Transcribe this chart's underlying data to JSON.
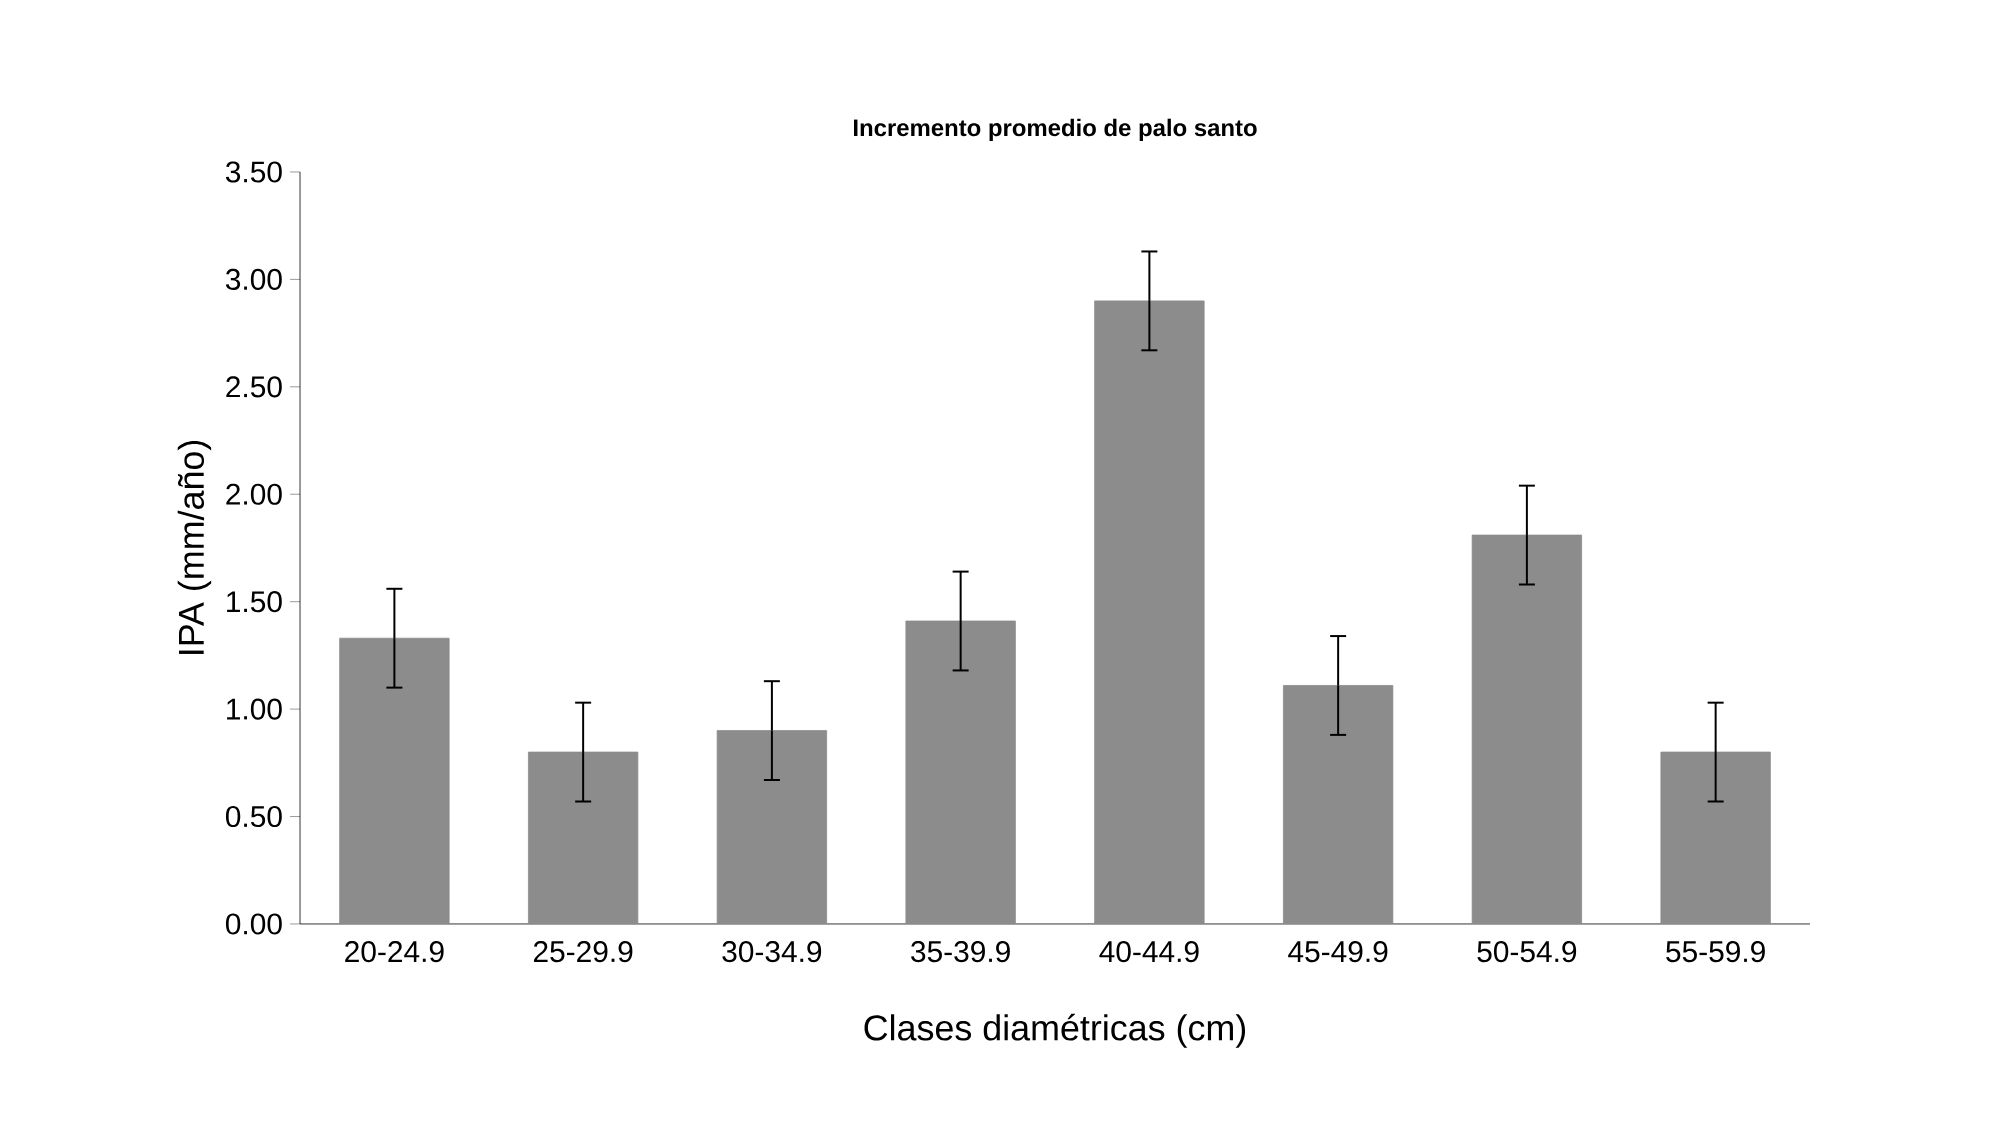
{
  "chart_data": {
    "type": "bar",
    "title": "Incremento promedio de palo santo",
    "xlabel": "Clases diamétricas (cm)",
    "ylabel": "IPA (mm/año)",
    "categories": [
      "20-24.9",
      "25-29.9",
      "30-34.9",
      "35-39.9",
      "40-44.9",
      "45-49.9",
      "50-54.9",
      "55-59.9"
    ],
    "values": [
      1.33,
      0.8,
      0.9,
      1.41,
      2.9,
      1.11,
      1.81,
      0.8
    ],
    "errors": [
      0.23,
      0.23,
      0.23,
      0.23,
      0.23,
      0.23,
      0.23,
      0.23
    ],
    "color": "#8c8c8c",
    "ylim": [
      0,
      3.5
    ],
    "yticks": [
      {
        "value": 0,
        "label": "0.00"
      },
      {
        "value": 0.5,
        "label": "0.50"
      },
      {
        "value": 1,
        "label": "1.00"
      },
      {
        "value": 1.5,
        "label": "1.50"
      },
      {
        "value": 2,
        "label": "2.00"
      },
      {
        "value": 2.5,
        "label": "2.50"
      },
      {
        "value": 3,
        "label": "3.00"
      },
      {
        "value": 3.5,
        "label": "3.50"
      }
    ],
    "grid": false
  }
}
